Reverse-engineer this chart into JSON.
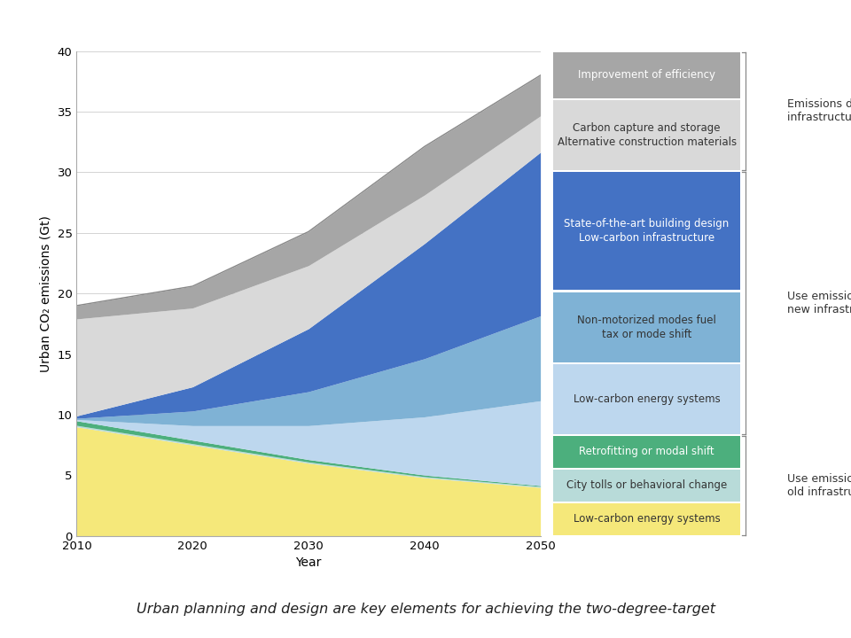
{
  "years": [
    2010,
    2020,
    2030,
    2040,
    2050
  ],
  "layers": [
    {
      "name": "Low-carbon energy systems (old)",
      "color": "#f5e87a",
      "values": [
        9.0,
        7.5,
        6.0,
        4.8,
        4.0
      ]
    },
    {
      "name": "City tolls or behavioral change",
      "color": "#b8dbd9",
      "values": [
        0.12,
        0.11,
        0.1,
        0.09,
        0.08
      ]
    },
    {
      "name": "Retrofitting or modal shift",
      "color": "#4caf7d",
      "values": [
        0.38,
        0.29,
        0.2,
        0.13,
        0.07
      ]
    },
    {
      "name": "Low-carbon energy systems (new)",
      "color": "#bdd7ee",
      "values": [
        0.1,
        1.2,
        2.8,
        4.8,
        7.0
      ]
    },
    {
      "name": "Non-motorized modes fuel tax or mode shift",
      "color": "#7fb2d5",
      "values": [
        0.1,
        1.2,
        2.8,
        4.8,
        7.0
      ]
    },
    {
      "name": "State-of-the-art building design / Low-carbon infrastructure",
      "color": "#4472c4",
      "values": [
        0.2,
        2.0,
        5.2,
        9.5,
        13.5
      ]
    },
    {
      "name": "Carbon capture and storage / Alternative construction materials",
      "color": "#d9d9d9",
      "values": [
        8.0,
        6.5,
        5.2,
        4.0,
        3.0
      ]
    },
    {
      "name": "Improvement of efficiency",
      "color": "#a6a6a6",
      "values": [
        1.1,
        1.8,
        2.8,
        4.0,
        3.35
      ]
    }
  ],
  "xlim": [
    2010,
    2050
  ],
  "ylim": [
    0,
    40
  ],
  "yticks": [
    0,
    5,
    10,
    15,
    20,
    25,
    30,
    35,
    40
  ],
  "xticks": [
    2010,
    2020,
    2030,
    2040,
    2050
  ],
  "xlabel": "Year",
  "ylabel": "Urban CO₂ emissions (Gt)",
  "title": "Urban planning and design are key elements for achieving the two-degree-target",
  "legend_items": [
    {
      "label": "Improvement of efficiency",
      "color": "#a6a6a6",
      "text_color": "white",
      "height_weight": 1
    },
    {
      "label": "Carbon capture and storage\nAlternative construction materials",
      "color": "#d9d9d9",
      "text_color": "#333333",
      "height_weight": 1.5
    },
    {
      "label": "State-of-the-art building design\nLow-carbon infrastructure",
      "color": "#4472c4",
      "text_color": "white",
      "height_weight": 2.5
    },
    {
      "label": "Non-motorized modes fuel\ntax or mode shift",
      "color": "#7fb2d5",
      "text_color": "#333333",
      "height_weight": 1.5
    },
    {
      "label": "Low-carbon energy systems",
      "color": "#bdd7ee",
      "text_color": "#333333",
      "height_weight": 1.5
    },
    {
      "label": "Retrofitting or modal shift",
      "color": "#4caf7d",
      "text_color": "white",
      "height_weight": 0.7
    },
    {
      "label": "City tolls or behavioral change",
      "color": "#b8dbd9",
      "text_color": "#333333",
      "height_weight": 0.7
    },
    {
      "label": "Low-carbon energy systems",
      "color": "#f5e87a",
      "text_color": "#333333",
      "height_weight": 0.7
    }
  ],
  "bracket_groups": [
    {
      "start": 0,
      "end": 1,
      "label": "Emissions due to\ninfrastructure build-up"
    },
    {
      "start": 2,
      "end": 4,
      "label": "Use emissions of\nnew infrastructure"
    },
    {
      "start": 5,
      "end": 7,
      "label": "Use emissions of\nold infrastructure"
    }
  ]
}
